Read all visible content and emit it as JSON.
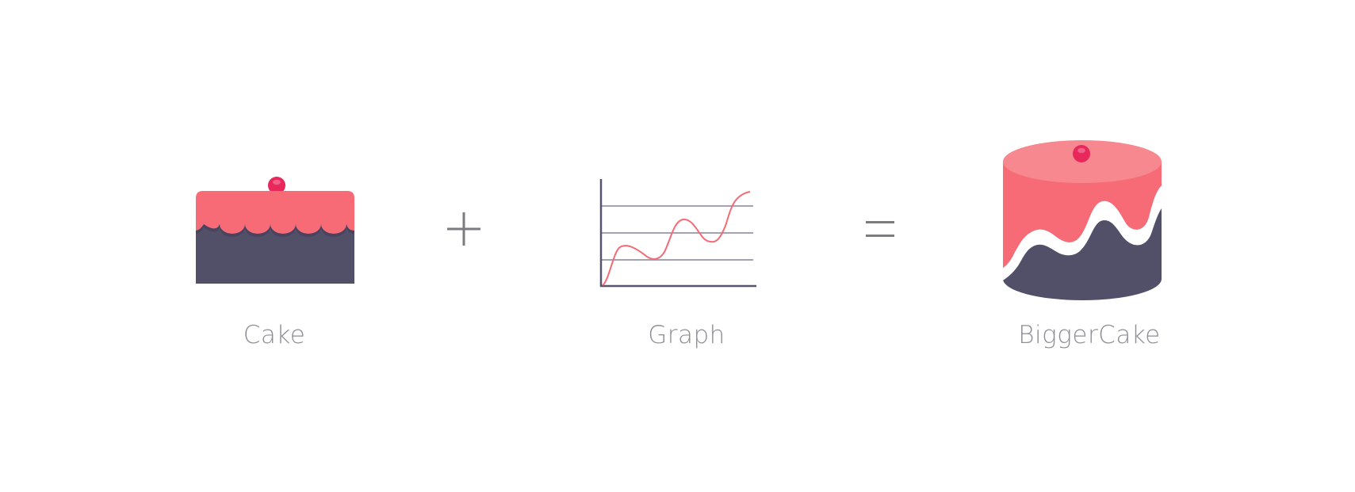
{
  "items": [
    {
      "label": "Cake"
    },
    {
      "label": "Graph"
    },
    {
      "label": "BiggerCake"
    }
  ],
  "operators": [
    "plus",
    "equals"
  ],
  "colors": {
    "frosting": "#f76b76",
    "frosting_top": "#f8888f",
    "body": "#524f69",
    "cherry": "#e8275b",
    "cherry_highlight": "#ef5f87",
    "graph_line": "#f46b76",
    "axis": "#55536d",
    "gridline": "#a3a1b5",
    "label_text": "#8e8e95",
    "operator": "#7b7b80",
    "background": "#ffffff"
  }
}
